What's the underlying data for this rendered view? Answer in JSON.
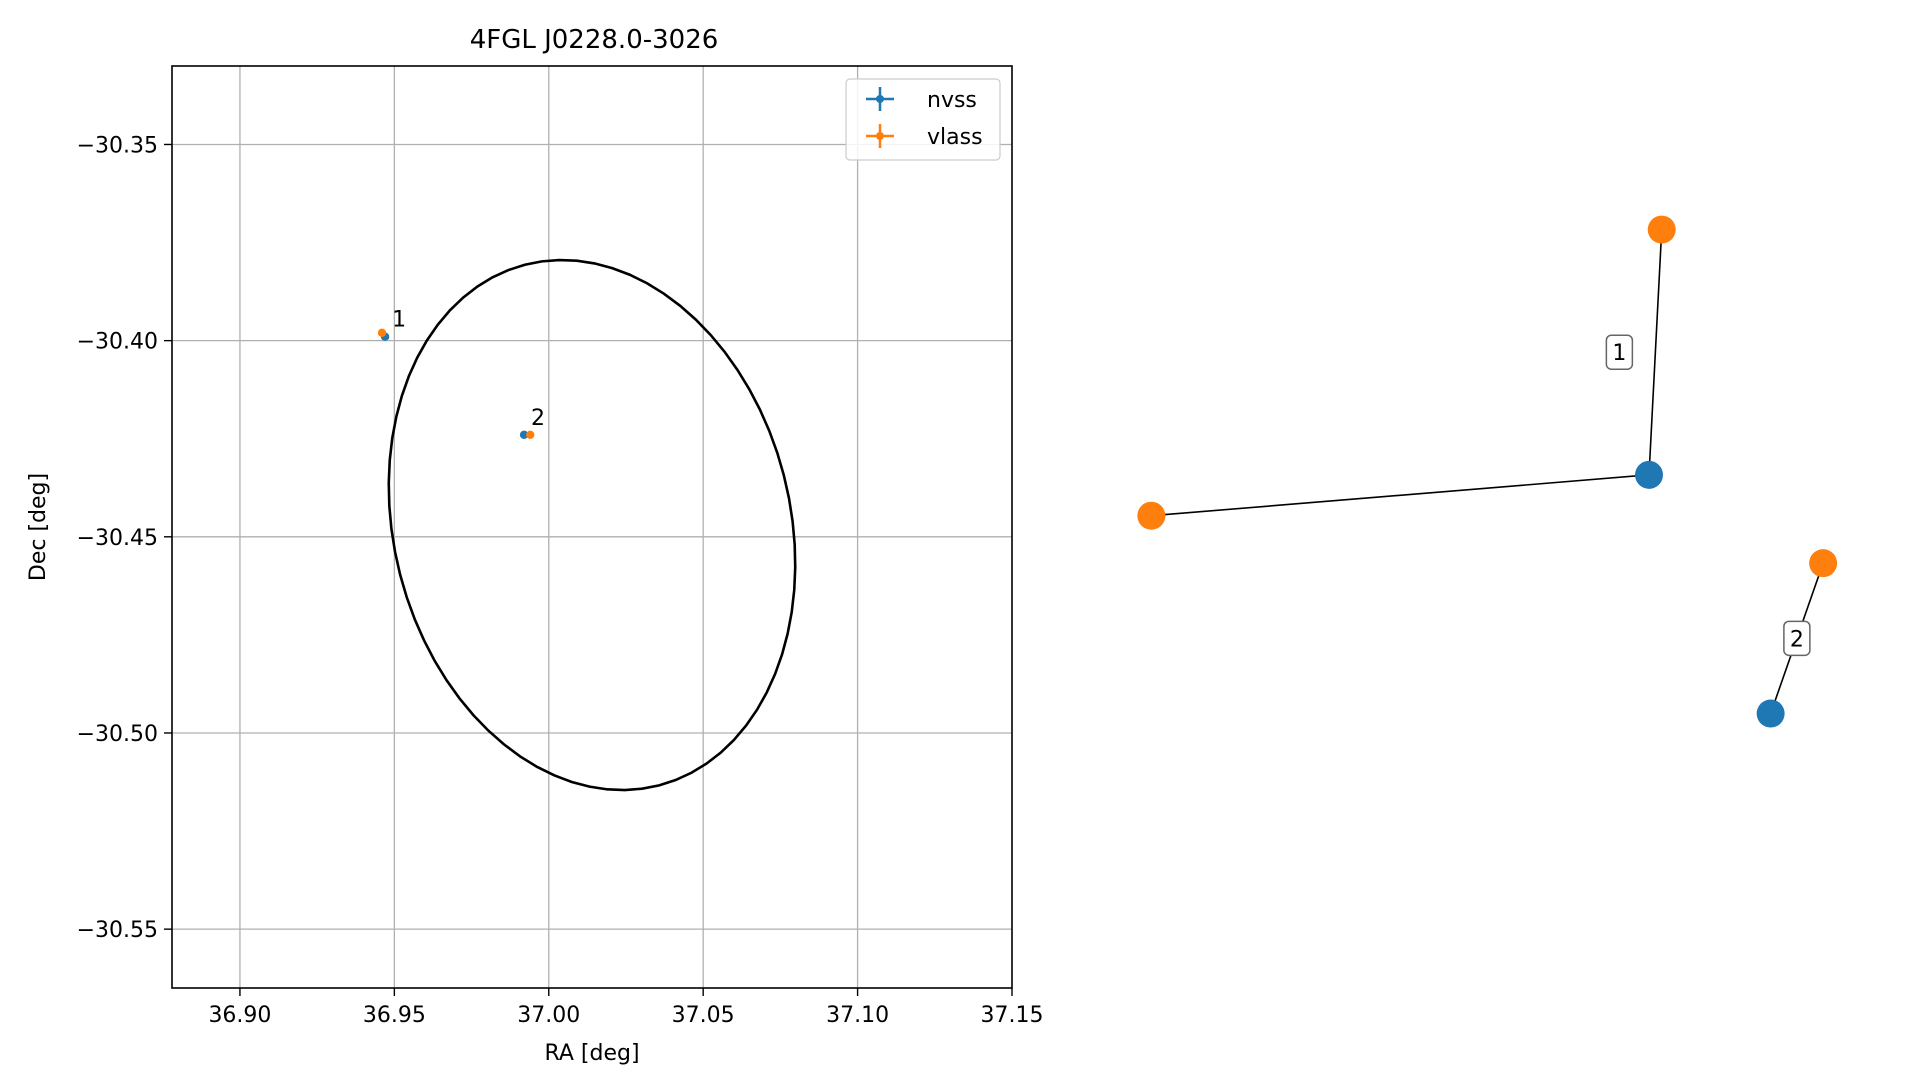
{
  "colors": {
    "nvss": "#1f77b4",
    "vlass": "#ff7f0e",
    "grid": "#b0b0b0",
    "ellipse": "#000000"
  },
  "chart_data": [
    {
      "type": "scatter",
      "title": "4FGL J0228.0-3026",
      "xlabel": "RA [deg]",
      "ylabel": "Dec [deg]",
      "xlim": [
        36.878,
        37.15
      ],
      "ylim": [
        -30.565,
        -30.33
      ],
      "xticks": [
        36.9,
        36.95,
        37.0,
        37.05,
        37.1,
        37.15
      ],
      "xtick_labels": [
        "36.90",
        "36.95",
        "37.00",
        "37.05",
        "37.10",
        "37.15"
      ],
      "yticks": [
        -30.35,
        -30.4,
        -30.45,
        -30.5,
        -30.55
      ],
      "ytick_labels": [
        "−30.35",
        "−30.40",
        "−30.45",
        "−30.50",
        "−30.55"
      ],
      "grid": true,
      "legend_position": "top-right",
      "series": [
        {
          "name": "nvss",
          "color": "#1f77b4",
          "x": [
            36.947,
            36.992
          ],
          "y": [
            -30.399,
            -30.424
          ]
        },
        {
          "name": "vlass",
          "color": "#ff7f0e",
          "x": [
            36.946,
            36.994
          ],
          "y": [
            -30.398,
            -30.424
          ]
        }
      ],
      "point_labels": [
        {
          "text": "1",
          "x": 36.947,
          "y": -30.399
        },
        {
          "text": "2",
          "x": 36.992,
          "y": -30.424
        }
      ],
      "ellipse": {
        "center": [
          37.014,
          -30.447
        ],
        "semi_major": 0.0715,
        "semi_minor": 0.0615,
        "angle_deg": -50
      }
    },
    {
      "type": "network",
      "groups": [
        {
          "label": "1",
          "nodes": [
            {
              "series": "nvss",
              "x": 0.678,
              "y": 0.555
            },
            {
              "series": "vlass",
              "x": 0.694,
              "y": 0.891
            },
            {
              "series": "vlass",
              "x": 0.052,
              "y": 0.499
            }
          ],
          "edges": [
            [
              0,
              1
            ],
            [
              0,
              2
            ]
          ]
        },
        {
          "label": "2",
          "nodes": [
            {
              "series": "nvss",
              "x": 0.831,
              "y": 0.228
            },
            {
              "series": "vlass",
              "x": 0.897,
              "y": 0.434
            }
          ],
          "edges": [
            [
              0,
              1
            ]
          ]
        }
      ]
    }
  ]
}
